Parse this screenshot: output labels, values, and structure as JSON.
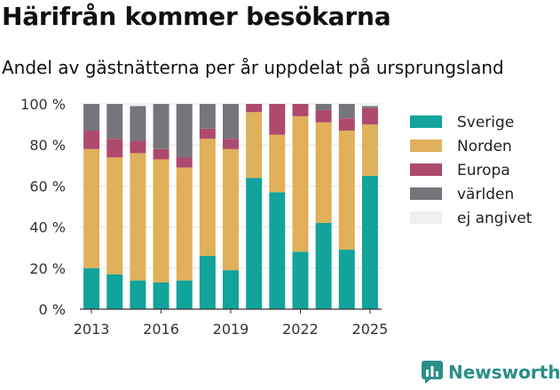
{
  "title": "Härifrån kommer besökarna",
  "subtitle": "Andel av gästnätterna per år uppdelat på ursprungsland",
  "brand": "Newsworthy",
  "chart_data": {
    "type": "bar",
    "stacked": true,
    "x": [
      2013,
      2014,
      2015,
      2016,
      2017,
      2018,
      2019,
      2020,
      2021,
      2022,
      2023,
      2024,
      2025
    ],
    "x_tick_labels": [
      "2013",
      "2016",
      "2019",
      "2022",
      "2025"
    ],
    "x_ticks": [
      2013,
      2016,
      2019,
      2022,
      2025
    ],
    "y_tick_labels": [
      "0 %",
      "20 %",
      "40 %",
      "60 %",
      "80 %",
      "100 %"
    ],
    "y_ticks": [
      0,
      20,
      40,
      60,
      80,
      100
    ],
    "ylim": [
      0,
      100
    ],
    "grid": true,
    "legend_position": "right",
    "series": [
      {
        "name": "Sverige",
        "color": "#12a39b",
        "values": [
          20,
          17,
          14,
          13,
          14,
          26,
          19,
          64,
          57,
          28,
          42,
          29,
          65
        ]
      },
      {
        "name": "Norden",
        "color": "#e0b05a",
        "values": [
          58,
          57,
          62,
          60,
          55,
          57,
          59,
          32,
          28,
          66,
          49,
          58,
          25
        ]
      },
      {
        "name": "Europa",
        "color": "#ad4a6e",
        "values": [
          9,
          9,
          6,
          5,
          5,
          5,
          5,
          4,
          15,
          6,
          6,
          6,
          8
        ]
      },
      {
        "name": "världen",
        "color": "#76757c",
        "values": [
          13,
          17,
          17,
          22,
          26,
          12,
          17,
          0,
          0,
          0,
          3,
          7,
          1
        ]
      },
      {
        "name": "ej angivet",
        "color": "#f0f0f0",
        "values": [
          0,
          0,
          1,
          0,
          0,
          0,
          0,
          0,
          0,
          0,
          0,
          0,
          1
        ]
      }
    ]
  }
}
